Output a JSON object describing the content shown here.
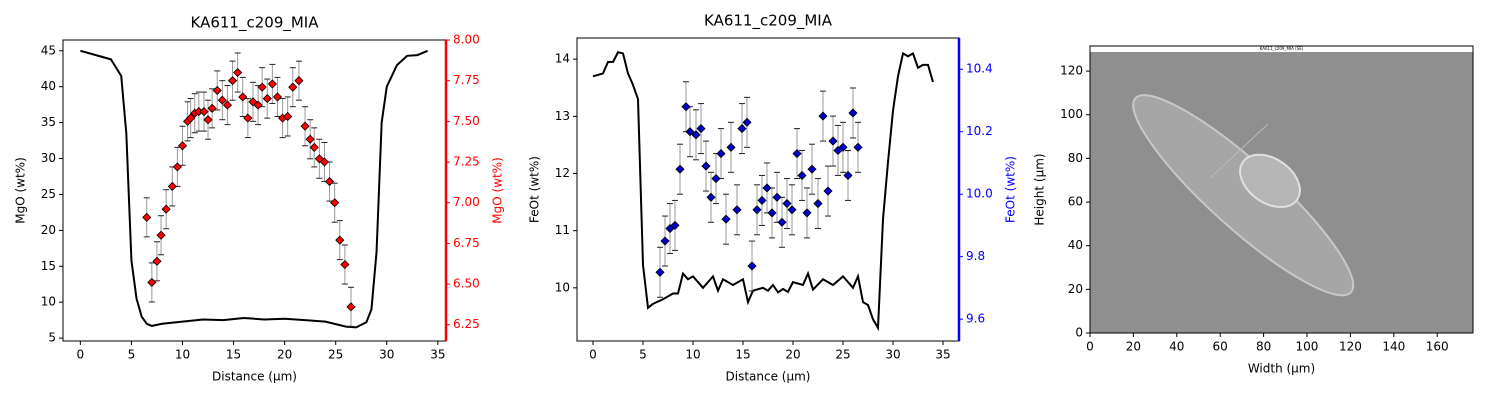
{
  "chart_data": [
    {
      "type": "line",
      "title": "KA611_c209_MIA",
      "x_label": "Distance (µm)",
      "y_label": "MgO (wt%)",
      "y2_label": "MgO (wt%)",
      "xlim": [
        -1.7,
        35.8
      ],
      "xticks": [
        0,
        5,
        10,
        15,
        20,
        25,
        30,
        35
      ],
      "ylim": [
        4.6,
        46.5
      ],
      "yticks": [
        5,
        10,
        15,
        20,
        25,
        30,
        35,
        40,
        45
      ],
      "y2lim": [
        6.15,
        8.0
      ],
      "y2ticks": [
        6.25,
        {
          "value": 6.5,
          "label": "6.50"
        },
        6.75,
        {
          "value": 7,
          "label": "7.00"
        },
        7.25,
        {
          "value": 7.5,
          "label": "7.50"
        },
        7.75,
        {
          "value": 8,
          "label": "8.00"
        }
      ],
      "y2_color": "#ff0000",
      "series": [
        {
          "color": "#000000",
          "x": [
            0,
            1,
            2,
            3,
            4,
            4.5,
            5,
            5.5,
            6,
            6.5,
            7,
            8,
            10,
            12,
            14,
            16,
            18,
            20,
            22,
            24,
            26,
            27,
            28,
            28.5,
            29,
            29.5,
            30,
            31,
            32,
            33,
            34
          ],
          "values": [
            45,
            44.6,
            44.2,
            43.8,
            41.5,
            33.5,
            15.8,
            10.5,
            8,
            7,
            6.7,
            7,
            7.3,
            7.6,
            7.5,
            7.8,
            7.6,
            7.7,
            7.5,
            7.3,
            6.6,
            6.5,
            7.2,
            9,
            17,
            35,
            40,
            43,
            44.3,
            44.4,
            45
          ]
        },
        {
          "color": "#ff0000",
          "axis": "y2",
          "error": 0.12,
          "x": [
            6.5,
            7.0,
            7.5,
            7.9,
            8.4,
            9.0,
            9.5,
            10.0,
            10.5,
            10.8,
            11.2,
            11.6,
            12.1,
            12.5,
            12.9,
            13.4,
            13.9,
            14.4,
            14.9,
            15.4,
            15.9,
            16.4,
            16.9,
            17.4,
            17.8,
            18.3,
            18.8,
            19.3,
            19.8,
            20.3,
            20.8,
            21.4,
            22.0,
            22.5,
            22.9,
            23.4,
            23.9,
            24.4,
            24.9,
            25.4,
            25.9,
            26.5
          ],
          "values": [
            6.91,
            6.51,
            6.64,
            6.8,
            6.96,
            7.1,
            7.22,
            7.35,
            7.5,
            7.52,
            7.55,
            7.56,
            7.56,
            7.51,
            7.58,
            7.69,
            7.63,
            7.6,
            7.75,
            7.8,
            7.65,
            7.52,
            7.62,
            7.6,
            7.71,
            7.64,
            7.73,
            7.65,
            7.52,
            7.53,
            7.71,
            7.75,
            7.47,
            7.39,
            7.34,
            7.27,
            7.25,
            7.13,
            7.0,
            6.77,
            6.62,
            6.36
          ]
        }
      ]
    },
    {
      "type": "line",
      "title": "KA611_c209_MIA",
      "x_label": "Distance (µm)",
      "y_label": "FeOt (wt%)",
      "y2_label": "FeOt (wt%)",
      "xlim": [
        -1.6,
        36.6
      ],
      "xticks": [
        0,
        5,
        10,
        15,
        20,
        25,
        30,
        35
      ],
      "ylim": [
        9.07,
        14.37
      ],
      "yticks": [
        10,
        11,
        12,
        13,
        14
      ],
      "y2lim": [
        9.53,
        10.5
      ],
      "y2ticks": [
        9.6,
        9.8,
        {
          "value": 10,
          "label": "10.0"
        },
        10.2,
        10.4
      ],
      "y2_color": "#0000ff",
      "series": [
        {
          "color": "#000000",
          "x": [
            0,
            1,
            1.5,
            2,
            2.5,
            3,
            3.5,
            4,
            4.5,
            5,
            5.5,
            6,
            7,
            8,
            8.5,
            9,
            9.5,
            10,
            11,
            11.5,
            12,
            12.5,
            13,
            14,
            15,
            15.5,
            16,
            17,
            17.5,
            18,
            18.5,
            19,
            19.5,
            20,
            21,
            21.5,
            22,
            23,
            24,
            25,
            26,
            26.5,
            27,
            27.5,
            28,
            28.5,
            29,
            29.5,
            30,
            30.5,
            31,
            31.5,
            32,
            32.5,
            33,
            33.5,
            34
          ],
          "values": [
            13.7,
            13.75,
            13.95,
            13.95,
            14.12,
            14.1,
            13.75,
            13.55,
            13.3,
            10.4,
            9.65,
            9.72,
            9.8,
            9.9,
            9.9,
            10.25,
            10.15,
            10.2,
            10.0,
            10.1,
            10.2,
            9.95,
            10.15,
            10.05,
            10.15,
            9.75,
            9.95,
            10.0,
            9.95,
            10.05,
            9.92,
            9.98,
            9.93,
            10.1,
            10.05,
            10.25,
            9.97,
            10.15,
            10.05,
            10.2,
            10.0,
            10.2,
            9.75,
            9.7,
            9.45,
            9.3,
            11.2,
            12.2,
            13.1,
            13.7,
            14.1,
            14.05,
            14.1,
            13.85,
            13.9,
            13.9,
            13.6
          ]
        },
        {
          "color": "#0000cc",
          "axis": "y2",
          "error": 0.08,
          "x": [
            6.7,
            7.2,
            7.7,
            8.2,
            8.7,
            9.3,
            9.7,
            10.3,
            10.8,
            11.3,
            11.8,
            12.3,
            12.8,
            13.3,
            13.8,
            14.4,
            14.9,
            15.4,
            15.9,
            16.4,
            16.9,
            17.4,
            17.9,
            18.4,
            18.9,
            19.4,
            19.9,
            20.4,
            20.9,
            21.4,
            21.9,
            22.5,
            23.0,
            23.5,
            24.0,
            24.5,
            25.0,
            25.5,
            26.0,
            26.5
          ],
          "values": [
            9.75,
            9.85,
            9.89,
            9.9,
            10.08,
            10.28,
            10.2,
            10.19,
            10.21,
            10.09,
            9.99,
            10.05,
            10.13,
            9.92,
            10.15,
            9.95,
            10.21,
            10.23,
            9.77,
            9.95,
            9.98,
            10.02,
            9.94,
            9.99,
            9.91,
            9.97,
            9.95,
            10.13,
            10.06,
            9.94,
            10.08,
            9.97,
            10.25,
            10.01,
            10.17,
            10.14,
            10.15,
            10.06,
            10.26,
            10.15
          ]
        }
      ]
    },
    {
      "type": "image",
      "caption": "KA611_c209_MIA (SE)",
      "x_label": "Width (µm)",
      "y_label": "Height (µm)",
      "xlim": [
        0,
        176.5
      ],
      "xticks": [
        0,
        20,
        40,
        60,
        80,
        100,
        120,
        140,
        160
      ],
      "ylim": [
        0,
        131.5
      ],
      "yticks": [
        0,
        20,
        40,
        60,
        80,
        100,
        120
      ]
    }
  ]
}
